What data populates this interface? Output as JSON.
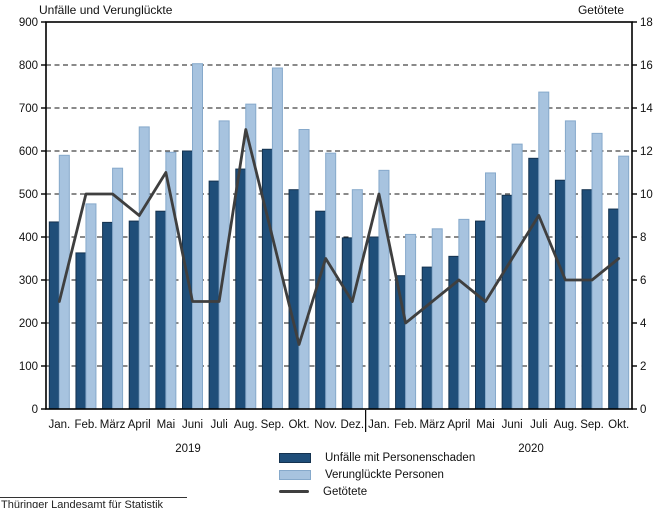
{
  "chart_data": {
    "type": "bar+line",
    "title_left_axis": "Unfälle und Verunglückte",
    "title_right_axis": "Getötete",
    "categories": [
      "Jan.",
      "Feb.",
      "März",
      "April",
      "Mai",
      "Juni",
      "Juli",
      "Aug.",
      "Sep.",
      "Okt.",
      "Nov.",
      "Dez.",
      "Jan.",
      "Feb.",
      "März",
      "April",
      "Mai",
      "Juni",
      "Juli",
      "Aug.",
      "Sep.",
      "Okt."
    ],
    "year_groups": [
      {
        "label": "2019",
        "months": 12
      },
      {
        "label": "2020",
        "months": 10
      }
    ],
    "series": [
      {
        "name": "Unfälle mit Personenschaden",
        "type": "bar",
        "axis": "left",
        "color": "#1F4E79",
        "border": "#14324F",
        "values": [
          435,
          363,
          434,
          437,
          460,
          600,
          530,
          558,
          604,
          510,
          460,
          398,
          400,
          310,
          330,
          355,
          437,
          497,
          583,
          532,
          510,
          465
        ]
      },
      {
        "name": "Verunglückte Personen",
        "type": "bar",
        "axis": "left",
        "color": "#A7C3DF",
        "border": "#86A9CB",
        "values": [
          590,
          477,
          560,
          656,
          597,
          803,
          670,
          709,
          793,
          650,
          595,
          510,
          555,
          406,
          419,
          441,
          549,
          616,
          737,
          670,
          641,
          588
        ]
      },
      {
        "name": "Getötete",
        "type": "line",
        "axis": "right",
        "color": "#3F3F3F",
        "values": [
          5,
          10,
          10,
          9,
          11,
          5,
          5,
          13,
          8,
          3,
          7,
          5,
          10,
          4,
          5,
          6,
          5,
          7,
          9,
          6,
          6,
          7
        ]
      }
    ],
    "left_axis": {
      "min": 0,
      "max": 900,
      "step": 100,
      "tick_labels": [
        "0",
        "100",
        "200",
        "300",
        "400",
        "500",
        "600",
        "700",
        "800",
        "900"
      ]
    },
    "right_axis": {
      "min": 0,
      "max": 18,
      "step": 2,
      "tick_labels": [
        "0",
        "2",
        "4",
        "6",
        "8",
        "10",
        "12",
        "14",
        "16",
        "18"
      ]
    },
    "grid": "dashed-horizontal",
    "legend_position": "bottom-center"
  },
  "legend": {
    "items": [
      {
        "label": "Unfälle mit Personenschaden",
        "swatch": "bar",
        "color": "#1F4E79"
      },
      {
        "label": "Verunglückte Personen",
        "swatch": "bar",
        "color": "#A7C3DF"
      },
      {
        "label": "Getötete",
        "swatch": "line",
        "color": "#3F3F3F"
      }
    ]
  },
  "footer": {
    "source": "Thüringer Landesamt für Statistik"
  }
}
